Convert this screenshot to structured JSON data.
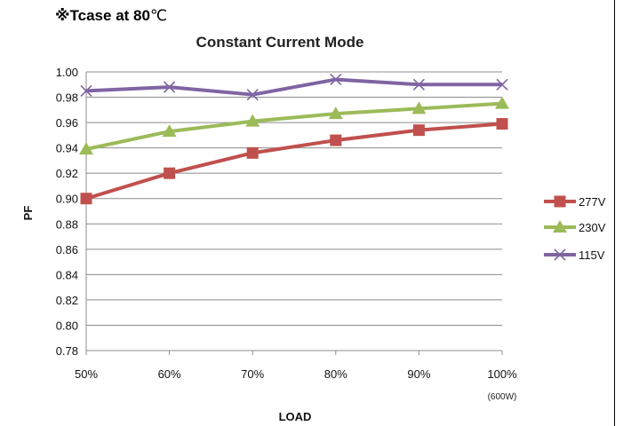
{
  "note": {
    "prefix": "※Tcase at 80",
    "unit": "℃"
  },
  "chart_data": {
    "type": "line",
    "title": "Constant Current Mode",
    "xlabel": "LOAD",
    "ylabel": "PF",
    "categories": [
      "50%",
      "60%",
      "70%",
      "80%",
      "90%",
      "100%"
    ],
    "category_sublabel": {
      "index": 5,
      "text": "(600W)"
    },
    "ylim": [
      0.78,
      1.0
    ],
    "yticks": [
      "0.78",
      "0.80",
      "0.82",
      "0.84",
      "0.86",
      "0.88",
      "0.90",
      "0.92",
      "0.94",
      "0.96",
      "0.98",
      "1.00"
    ],
    "grid": true,
    "legend": "right",
    "series": [
      {
        "name": "277V",
        "marker": "square",
        "color": "#c0504d",
        "values": [
          0.9,
          0.92,
          0.936,
          0.946,
          0.954,
          0.959
        ]
      },
      {
        "name": "230V",
        "marker": "triangle",
        "color": "#9bbb59",
        "values": [
          0.939,
          0.953,
          0.961,
          0.967,
          0.971,
          0.975
        ]
      },
      {
        "name": "115V",
        "marker": "x",
        "color": "#8064a2",
        "values": [
          0.985,
          0.988,
          0.982,
          0.994,
          0.99,
          0.99
        ]
      }
    ]
  }
}
